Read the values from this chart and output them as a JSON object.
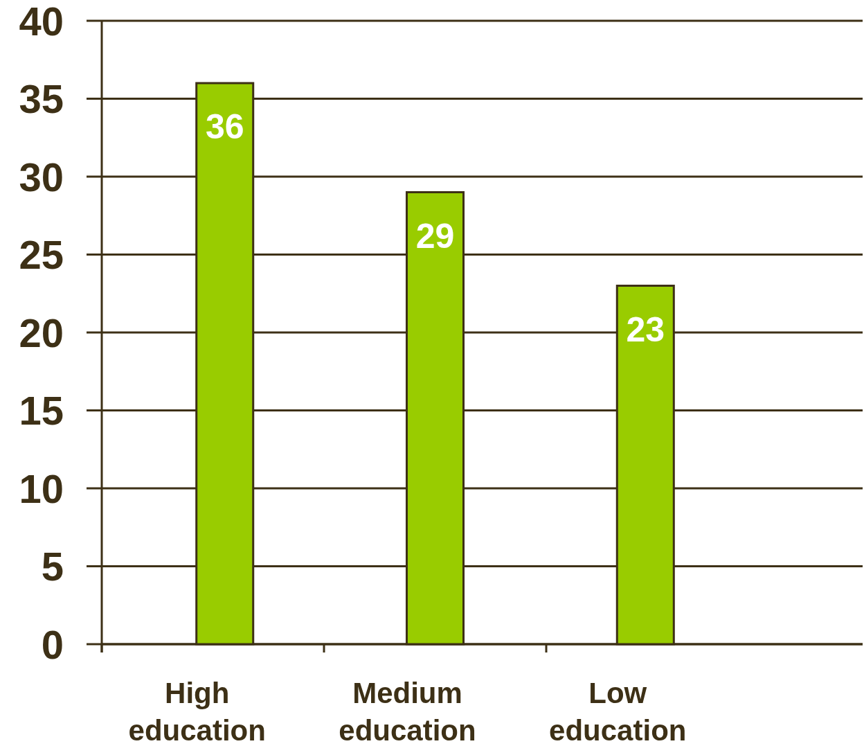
{
  "chart_data": {
    "type": "bar",
    "categories": [
      "High education",
      "Medium education",
      "Low education"
    ],
    "values": [
      36,
      29,
      23
    ],
    "color": "#99cc00",
    "ylim": [
      0,
      40
    ],
    "yticks": [
      0,
      5,
      10,
      15,
      20,
      25,
      30,
      35,
      40
    ],
    "grid": "y",
    "data_labels": true
  }
}
